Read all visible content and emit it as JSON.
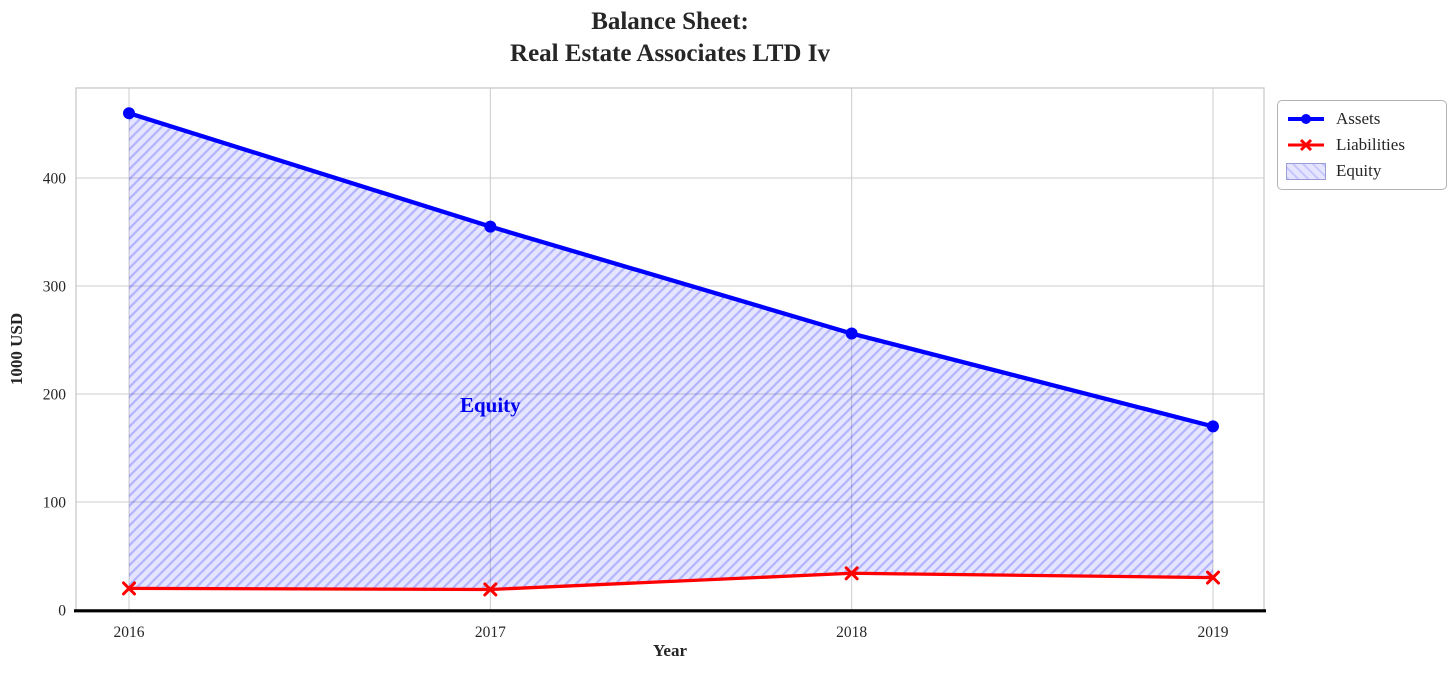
{
  "chart_data": {
    "type": "line",
    "title": "Balance Sheet:\nReal Estate Associates LTD Iv",
    "xlabel": "Year",
    "ylabel": "1000 USD",
    "x": [
      "2016",
      "2017",
      "2018",
      "2019"
    ],
    "series": [
      {
        "name": "Assets",
        "values": [
          460,
          355,
          256,
          170
        ],
        "color": "#0000ff",
        "marker": "circle",
        "linewidth": 4.3
      },
      {
        "name": "Liabilities",
        "values": [
          20,
          19,
          34,
          30
        ],
        "color": "#ff0000",
        "marker": "x",
        "linewidth": 3.3
      }
    ],
    "area": {
      "name": "Equity",
      "between": [
        "Assets",
        "Liabilities"
      ],
      "hatch": "///",
      "fill_color": "rgba(0,0,255,0.10)",
      "hatch_color": "rgba(0,0,255,0.22)",
      "annotation": {
        "text": "Equity",
        "x": "2017",
        "y": 190,
        "color": "#0000ee"
      }
    },
    "yticks": [
      0,
      100,
      200,
      300,
      400
    ],
    "ylim": [
      0,
      483
    ],
    "grid": true,
    "grid_color": "#cccccc",
    "axis": {
      "border_color": "#c6c6c6",
      "bottom_spine_color": "#000000",
      "tick_label_color": "#262626"
    },
    "legend_position": "outside upper right"
  }
}
